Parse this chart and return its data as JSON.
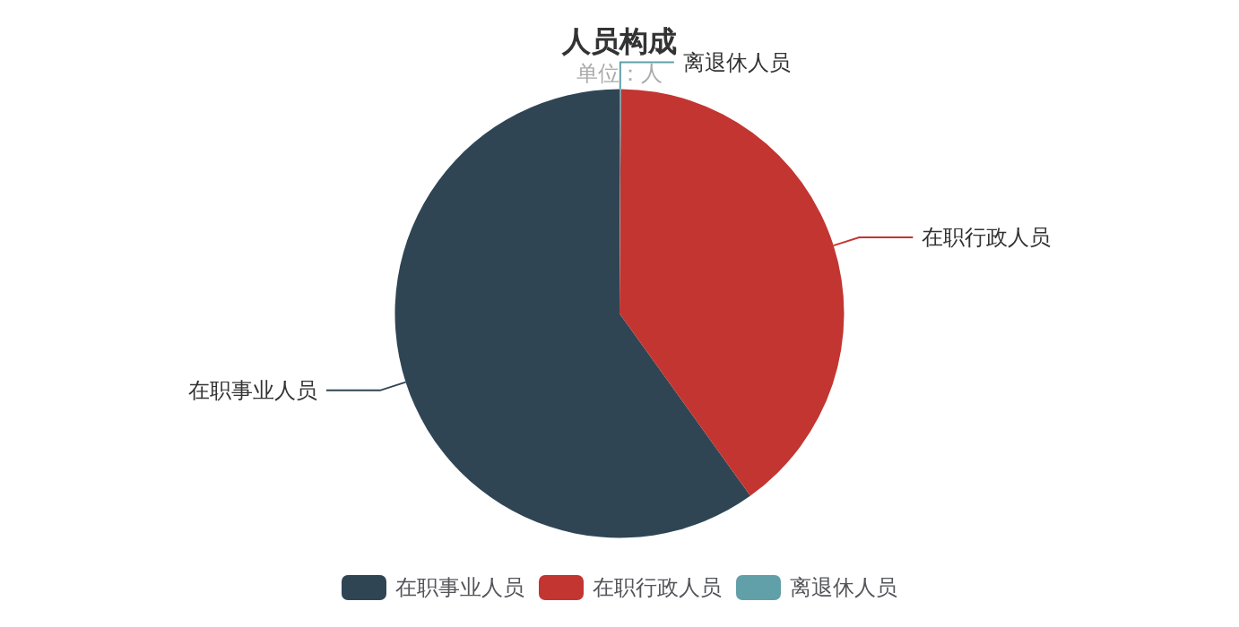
{
  "chart_data": {
    "type": "pie",
    "title": "人员构成",
    "subtitle": "单位：人",
    "categories": [
      "在职事业人员",
      "在职行政人员",
      "离退休人员"
    ],
    "values": [
      59.9,
      40,
      0.1
    ],
    "colors": [
      "#2f4554",
      "#c23531",
      "#61a0a8"
    ],
    "legend": "bottom"
  }
}
